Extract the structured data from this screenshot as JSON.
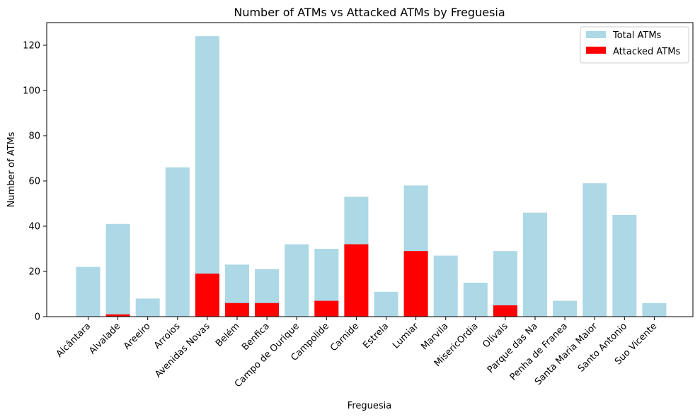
{
  "chart_data": {
    "type": "bar",
    "title": "Number of ATMs vs Attacked ATMs by Freguesia",
    "xlabel": "Freguesia",
    "ylabel": "Number of ATMs",
    "ylim": [
      0,
      130
    ],
    "yticks": [
      0,
      20,
      40,
      60,
      80,
      100,
      120
    ],
    "grid": false,
    "legend_position": "top-right",
    "categories": [
      "Alcântara",
      "Alvalade",
      "Areeiro",
      "Arroios",
      "Avenidas Novas",
      "Belém",
      "Benfica",
      "Campo de Ourique",
      "Campolide",
      "Carnide",
      "Estrela",
      "Lumiar",
      "Marvila",
      "MisericOrdia",
      "Olivais",
      "Parque das Na",
      "Penha de Franea",
      "Santa Maria Maior",
      "Santo Antonio",
      "Suo Vicente"
    ],
    "series": [
      {
        "name": "Total ATMs",
        "color": "#add8e6",
        "values": [
          22,
          41,
          8,
          66,
          124,
          23,
          21,
          32,
          30,
          53,
          11,
          58,
          27,
          15,
          29,
          46,
          7,
          59,
          45,
          6
        ]
      },
      {
        "name": "Attacked ATMs",
        "color": "#ff0000",
        "values": [
          0,
          1,
          0,
          0,
          19,
          6,
          6,
          0,
          7,
          32,
          0,
          29,
          0,
          0,
          5,
          0,
          0,
          0,
          0,
          0
        ]
      }
    ]
  }
}
